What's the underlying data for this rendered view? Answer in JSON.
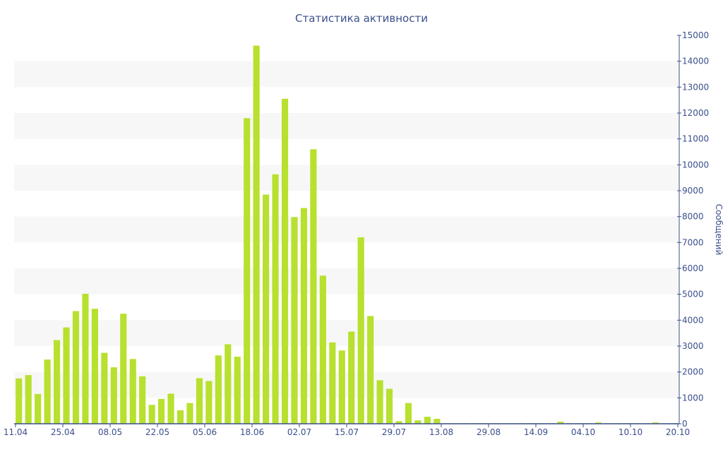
{
  "chart_data": {
    "type": "bar",
    "title": "Статистика активности",
    "xlabel": "",
    "ylabel": "Сообщений",
    "y_axis_side": "right",
    "ylim": [
      0,
      15000
    ],
    "y_ticks": [
      0,
      1000,
      2000,
      3000,
      4000,
      5000,
      6000,
      7000,
      8000,
      9000,
      10000,
      11000,
      12000,
      13000,
      14000,
      15000
    ],
    "grid": "alternating horizontal bands",
    "x_tick_labels": [
      "11.04",
      "25.04",
      "08.05",
      "22.05",
      "05.06",
      "18.06",
      "02.07",
      "15.07",
      "29.07",
      "13.08",
      "29.08",
      "14.09",
      "04.10",
      "10.10",
      "20.10"
    ],
    "values": [
      1750,
      1880,
      1150,
      2480,
      3230,
      3720,
      4350,
      5020,
      4440,
      2740,
      2180,
      4250,
      2500,
      1830,
      730,
      960,
      1160,
      520,
      800,
      1760,
      1650,
      2640,
      3070,
      2590,
      11800,
      14600,
      8850,
      9630,
      12550,
      7980,
      8330,
      10600,
      5720,
      3140,
      2830,
      3560,
      7200,
      4160,
      1680,
      1350,
      100,
      800,
      130,
      270,
      190,
      20,
      20,
      20,
      20,
      20,
      20,
      20,
      20,
      20,
      20,
      20,
      20,
      80,
      20,
      20,
      20,
      50,
      20,
      20,
      20,
      20,
      20,
      50,
      20,
      20
    ],
    "colors": {
      "bar": "#b8e02f",
      "band": "#f7f7f7",
      "axis": "#3b4f8c",
      "text": "#3b4f8c"
    }
  }
}
